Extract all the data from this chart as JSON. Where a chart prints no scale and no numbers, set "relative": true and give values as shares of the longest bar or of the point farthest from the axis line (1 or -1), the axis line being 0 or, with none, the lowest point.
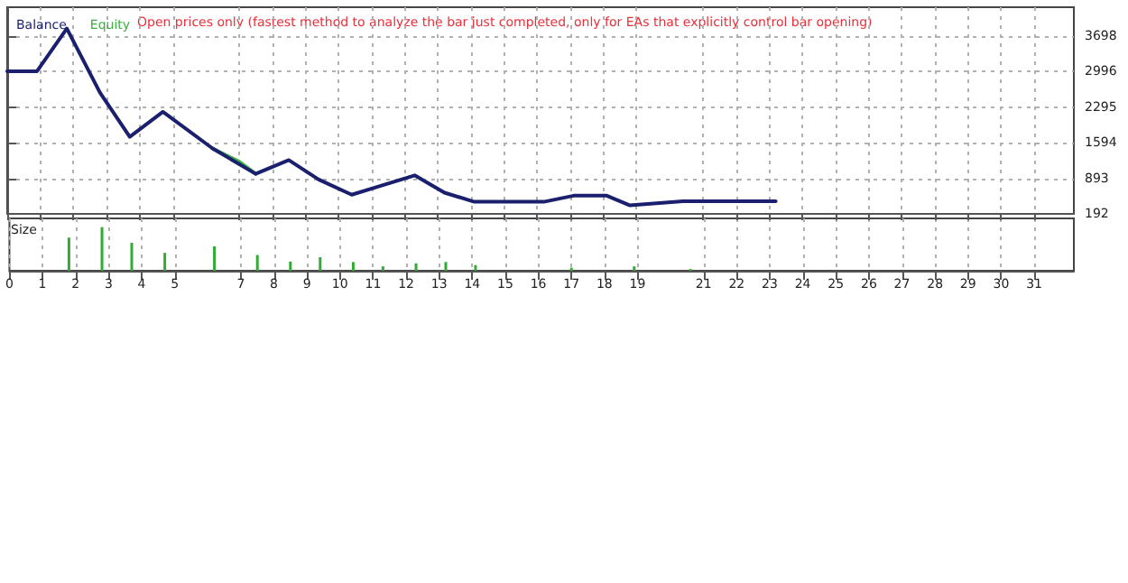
{
  "chart_data": [
    {
      "type": "line",
      "annotations": [
        "Open prices only (fastest method to analyze the bar just completed, only for EAs that explicitly control bar opening)"
      ],
      "series": [
        {
          "name": "Equity",
          "color": "#3cb043",
          "x": [
            6.2,
            7.0,
            7.5
          ],
          "values": [
            1480,
            1220,
            980
          ]
        },
        {
          "name": "Balance",
          "color": "#1a1f6e",
          "x": [
            0,
            0.9,
            1.8,
            2.8,
            3.7,
            4.7,
            6.2,
            7.5,
            8.5,
            9.4,
            10.4,
            11.3,
            12.3,
            13.2,
            14.1,
            16.2,
            17.1,
            18.1,
            18.8,
            20.4,
            23.2
          ],
          "values": [
            3000,
            3000,
            3840,
            2580,
            1710,
            2200,
            1480,
            980,
            1250,
            870,
            570,
            750,
            950,
            610,
            430,
            430,
            550,
            550,
            360,
            440,
            440
          ]
        }
      ],
      "xlim": [
        0,
        32.2
      ],
      "xticks": [
        0,
        1,
        2,
        3,
        4,
        5,
        7,
        8,
        9,
        10,
        11,
        12,
        13,
        14,
        15,
        16,
        17,
        18,
        19,
        21,
        22,
        23,
        24,
        25,
        26,
        27,
        28,
        29,
        30,
        31
      ],
      "ylim": [
        192,
        4260
      ],
      "yticks": [
        192,
        893,
        1594,
        2295,
        2996,
        3698
      ],
      "grid": true,
      "legend": "top left",
      "marker": "none",
      "line_style": "solid",
      "tick_labels": "y"
    },
    {
      "type": "bar",
      "ylabel": "Size",
      "relative": true,
      "color": "#33aa33",
      "x": [
        1.8,
        2.8,
        3.7,
        4.7,
        6.2,
        7.5,
        8.5,
        9.4,
        10.4,
        11.3,
        12.3,
        13.2,
        14.1,
        17.0,
        18.9,
        20.6
      ],
      "values": [
        0.76,
        1,
        0.64,
        0.41,
        0.56,
        0.36,
        0.21,
        0.31,
        0.2,
        0.1,
        0.17,
        0.2,
        0.13,
        0.07,
        0.1,
        0.04
      ],
      "xlim": [
        0,
        32.2
      ],
      "xticks": [
        0,
        1,
        2,
        3,
        4,
        5,
        7,
        8,
        9,
        10,
        11,
        12,
        13,
        14,
        15,
        16,
        17,
        18,
        19,
        21,
        22,
        23,
        24,
        25,
        26,
        27,
        28,
        29,
        30,
        31
      ],
      "grid": "x",
      "tick_labels": "x"
    }
  ]
}
